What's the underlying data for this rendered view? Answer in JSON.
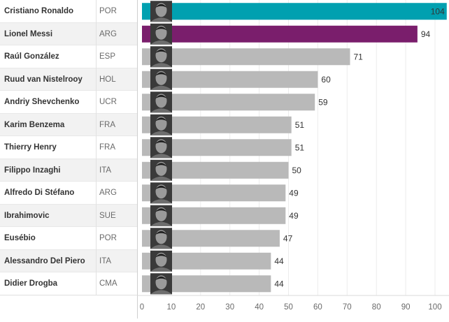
{
  "chart_data": {
    "type": "bar",
    "orientation": "horizontal",
    "title": "",
    "xlabel": "",
    "ylabel": "",
    "xlim": [
      0,
      104
    ],
    "x_ticks": [
      0,
      10,
      20,
      30,
      40,
      50,
      60,
      70,
      80,
      90,
      100
    ],
    "grid": true,
    "players": [
      {
        "name": "Cristiano Ronaldo",
        "country": "POR",
        "value": 104,
        "color": "#00a0b0"
      },
      {
        "name": "Lionel Messi",
        "country": "ARG",
        "value": 94,
        "color": "#7a1e6c"
      },
      {
        "name": "Raúl González",
        "country": "ESP",
        "value": 71,
        "color": "#b9b9b9"
      },
      {
        "name": "Ruud van Nistelrooy",
        "country": "HOL",
        "value": 60,
        "color": "#b9b9b9"
      },
      {
        "name": "Andriy Shevchenko",
        "country": "UCR",
        "value": 59,
        "color": "#b9b9b9"
      },
      {
        "name": "Karim Benzema",
        "country": "FRA",
        "value": 51,
        "color": "#b9b9b9"
      },
      {
        "name": "Thierry Henry",
        "country": "FRA",
        "value": 51,
        "color": "#b9b9b9"
      },
      {
        "name": "Filippo Inzaghi",
        "country": "ITA",
        "value": 50,
        "color": "#b9b9b9"
      },
      {
        "name": "Alfredo Di Stéfano",
        "country": "ARG",
        "value": 49,
        "color": "#b9b9b9"
      },
      {
        "name": "Ibrahimovic",
        "country": "SUE",
        "value": 49,
        "color": "#b9b9b9"
      },
      {
        "name": "Eusébio",
        "country": "POR",
        "value": 47,
        "color": "#b9b9b9"
      },
      {
        "name": "Alessandro Del Piero",
        "country": "ITA",
        "value": 44,
        "color": "#b9b9b9"
      },
      {
        "name": "Didier Drogba",
        "country": "CMA",
        "value": 44,
        "color": "#b9b9b9"
      }
    ]
  },
  "colors": {
    "highlight_primary": "#00a0b0",
    "highlight_secondary": "#7a1e6c",
    "default_bar": "#b9b9b9",
    "row_alt": "#f2f2f2"
  }
}
